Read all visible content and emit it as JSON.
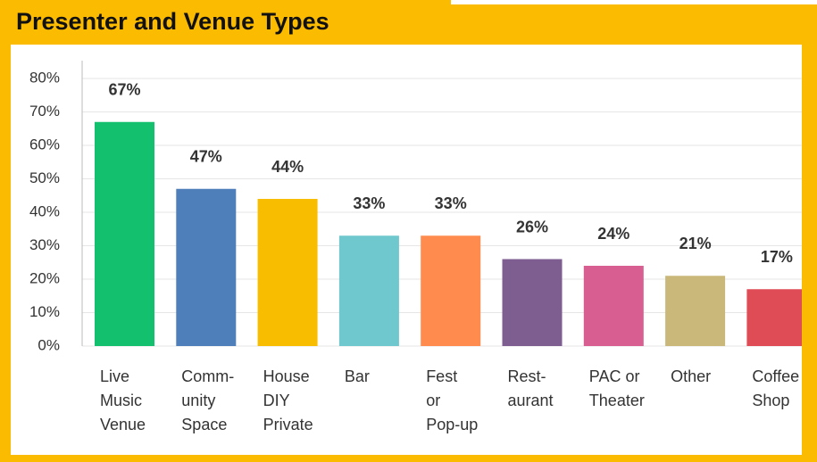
{
  "chart_data": {
    "type": "bar",
    "title": "Presenter and Venue Types",
    "categories": [
      [
        "Live",
        "Music",
        "Venue"
      ],
      [
        "Comm-",
        "unity",
        "Space"
      ],
      [
        "House",
        "DIY",
        "Private"
      ],
      [
        "Bar"
      ],
      [
        "Fest",
        "or",
        "Pop-up"
      ],
      [
        "Rest-",
        "aurant"
      ],
      [
        "PAC or",
        "Theater"
      ],
      [
        "Other"
      ],
      [
        "Coffee",
        "Shop"
      ]
    ],
    "values": [
      67,
      47,
      44,
      33,
      33,
      26,
      24,
      21,
      17
    ],
    "value_labels": [
      "67%",
      "47%",
      "44%",
      "33%",
      "33%",
      "26%",
      "24%",
      "21%",
      "17%"
    ],
    "colors": [
      "#13c06e",
      "#4f7fba",
      "#f9bd00",
      "#6ec8cd",
      "#ff8c4e",
      "#7e5d91",
      "#d85d90",
      "#c9b879",
      "#e04c56"
    ],
    "ylim": [
      0,
      80
    ],
    "yticks": [
      {
        "value": 0,
        "label": "0%"
      },
      {
        "value": 10,
        "label": "10%"
      },
      {
        "value": 20,
        "label": "20%"
      },
      {
        "value": 30,
        "label": "30%"
      },
      {
        "value": 40,
        "label": "40%"
      },
      {
        "value": 50,
        "label": "50%"
      },
      {
        "value": 60,
        "label": "60%"
      },
      {
        "value": 70,
        "label": "70%"
      },
      {
        "value": 80,
        "label": "80%"
      }
    ],
    "grid": true
  }
}
